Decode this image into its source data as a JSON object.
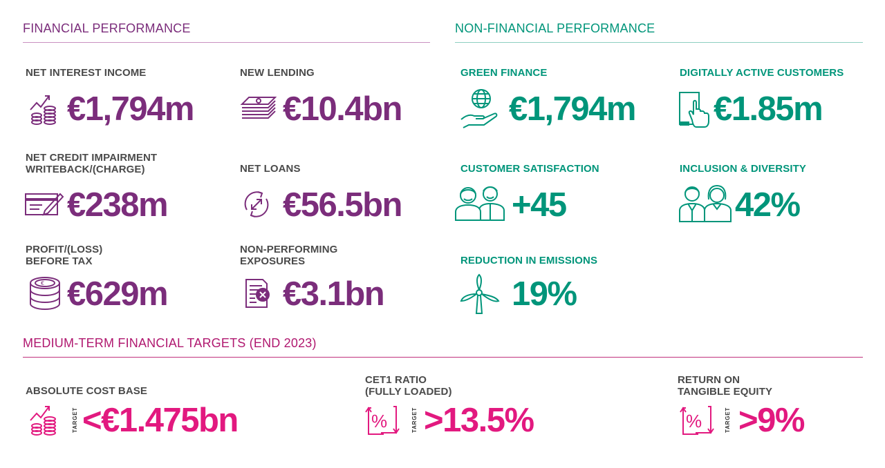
{
  "sections": {
    "financial": "FINANCIAL PERFORMANCE",
    "non_financial": "NON-FINANCIAL PERFORMANCE",
    "targets": "MEDIUM-TERM FINANCIAL TARGETS (END 2023)"
  },
  "financial": [
    {
      "label": "NET INTEREST INCOME",
      "value": "€1,794m",
      "icon": "growth-coins-icon"
    },
    {
      "label": "NEW LENDING",
      "value": "€10.4bn",
      "icon": "banknotes-icon"
    },
    {
      "label": "NET CREDIT IMPAIRMENT\nWRITEBACK/(CHARGE)",
      "value": "€238m",
      "icon": "cheque-pen-icon"
    },
    {
      "label": "NET LOANS",
      "value": "€56.5bn",
      "icon": "circular-arrows-icon"
    },
    {
      "label": "PROFIT/(LOSS)\nBEFORE TAX",
      "value": "€629m",
      "icon": "coin-stack-euro-icon"
    },
    {
      "label": "NON-PERFORMING\nEXPOSURES",
      "value": "€3.1bn",
      "icon": "document-cross-icon"
    }
  ],
  "non_financial": [
    {
      "label": "GREEN FINANCE",
      "value": "€1,794m",
      "icon": "globe-hand-icon"
    },
    {
      "label": "DIGITALLY ACTIVE CUSTOMERS",
      "value": "€1.85m",
      "icon": "tablet-touch-icon"
    },
    {
      "label": "CUSTOMER SATISFACTION",
      "value": "+45",
      "icon": "two-people-icon"
    },
    {
      "label": "INCLUSION & DIVERSITY",
      "value": "42%",
      "icon": "diverse-people-icon"
    },
    {
      "label": "REDUCTION IN EMISSIONS",
      "value": "19%",
      "icon": "wind-turbine-icon"
    }
  ],
  "targets": [
    {
      "label": "ABSOLUTE COST BASE",
      "tag": "TARGET",
      "value": "<€1.475bn",
      "icon": "growth-coins-icon"
    },
    {
      "label": "CET1 RATIO\n(FULLY LOADED)",
      "tag": "TARGET",
      "value": ">13.5%",
      "icon": "percent-arrows-icon"
    },
    {
      "label": "RETURN ON\nTANGIBLE EQUITY",
      "tag": "TARGET",
      "value": ">9%",
      "icon": "percent-arrows-icon"
    }
  ],
  "colors": {
    "financial": "#7b2d7b",
    "non_financial": "#00957a",
    "targets": "#e2197f",
    "label_text": "#4a4a4a"
  }
}
